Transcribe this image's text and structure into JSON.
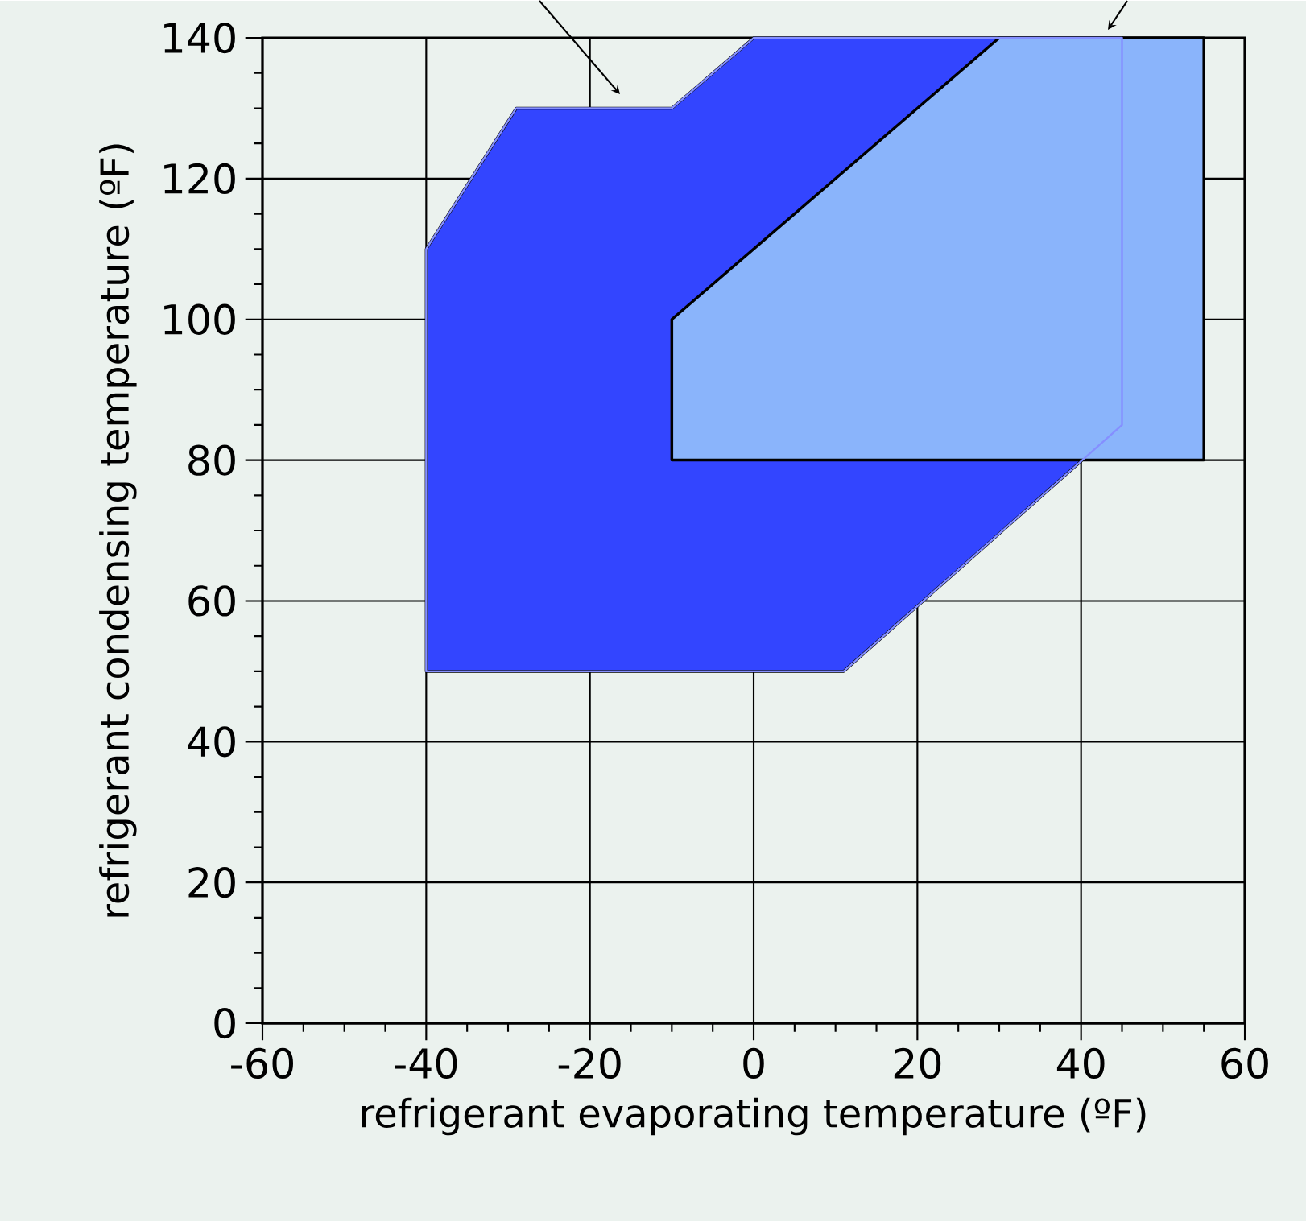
{
  "chart_data": {
    "type": "area",
    "xlabel": "refrigerant evaporating temperature (ºF)",
    "ylabel": "refrigerant condensing temperature (ºF)",
    "xlim": [
      -60,
      60
    ],
    "ylim": [
      0,
      140
    ],
    "xticks": [
      -60,
      -40,
      -20,
      0,
      20,
      40,
      60
    ],
    "yticks": [
      0,
      20,
      40,
      60,
      80,
      100,
      120,
      140
    ],
    "grid": true,
    "series": [
      {
        "color": "#3345ff",
        "x": [
          -40,
          -40,
          -29,
          -10,
          0,
          45,
          45,
          11,
          -40
        ],
        "values": [
          50,
          110,
          130,
          130,
          140,
          140,
          85,
          50,
          50
        ]
      },
      {
        "color": "#8ab4fb",
        "x": [
          -10,
          -10,
          30,
          55,
          55,
          -10
        ],
        "values": [
          80,
          100,
          140,
          140,
          80,
          80
        ]
      }
    ]
  }
}
